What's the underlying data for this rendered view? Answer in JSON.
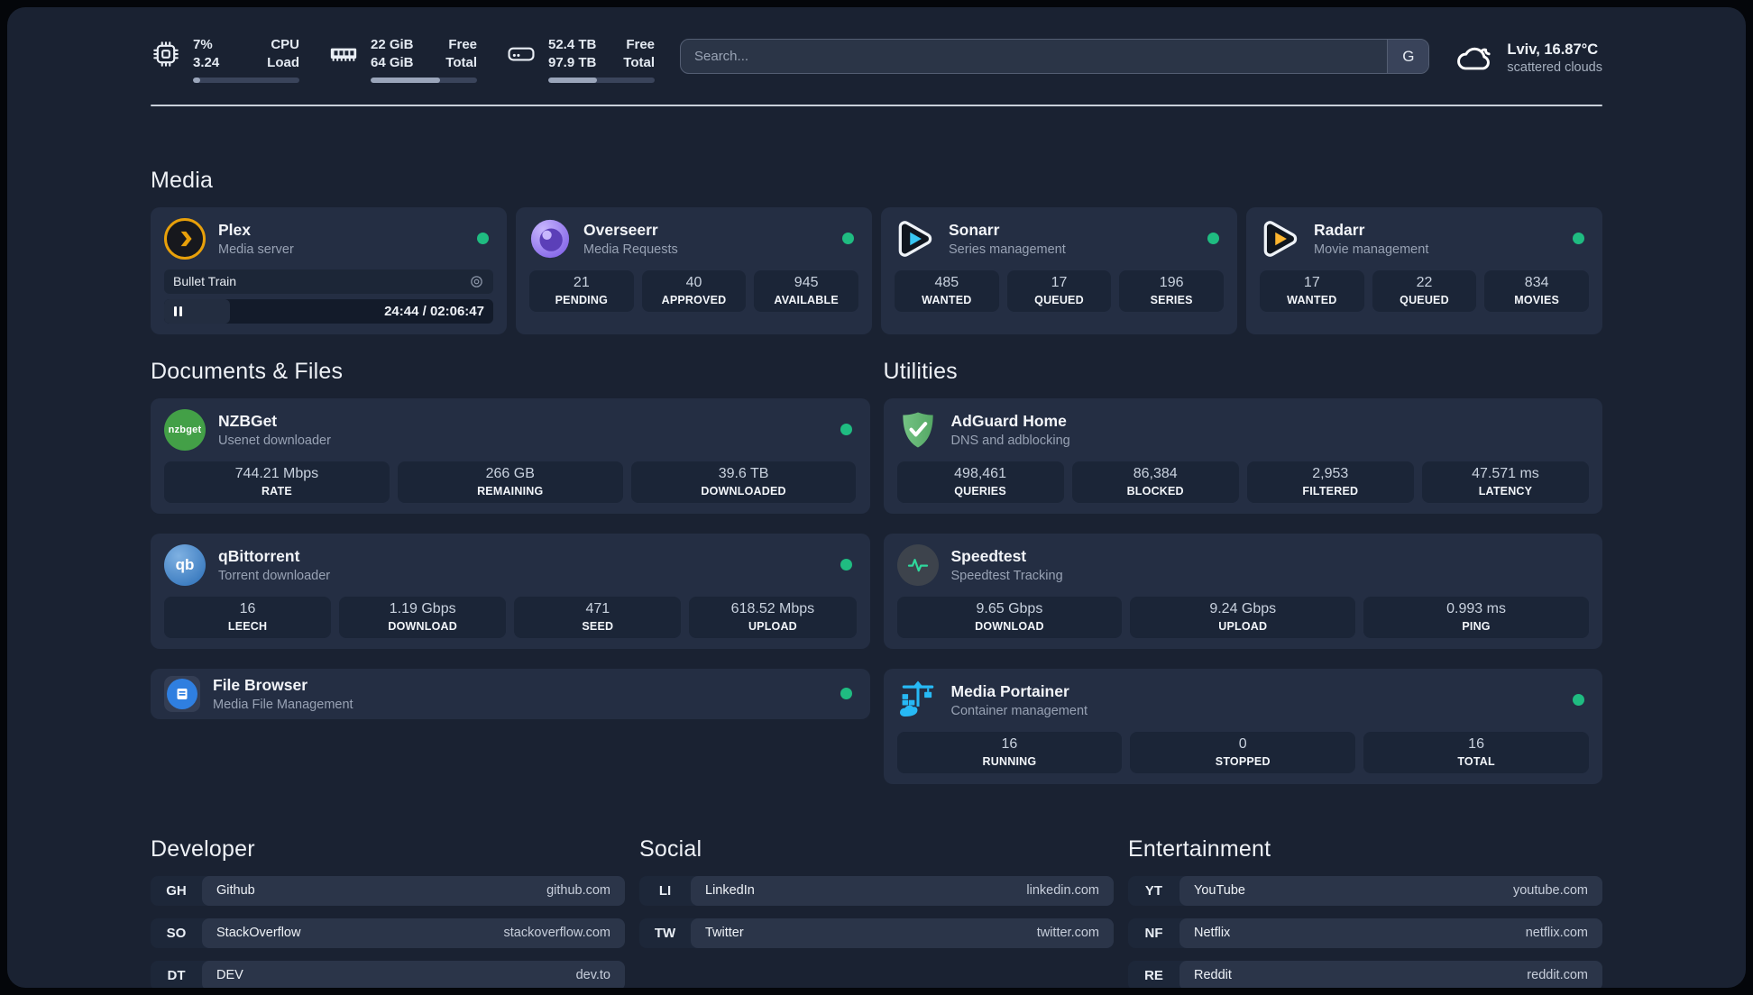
{
  "header": {
    "stats": [
      {
        "left_top": "7%",
        "left_bottom": "3.24",
        "right_top": "CPU",
        "right_bottom": "Load",
        "progress_pct": 7
      },
      {
        "left_top": "22 GiB",
        "left_bottom": "64 GiB",
        "right_top": "Free",
        "right_bottom": "Total",
        "progress_pct": 65
      },
      {
        "left_top": "52.4 TB",
        "left_bottom": "97.9 TB",
        "right_top": "Free",
        "right_bottom": "Total",
        "progress_pct": 46
      }
    ],
    "search": {
      "placeholder": "Search...",
      "engine_label": "G"
    },
    "weather": {
      "location": "Lviv, 16.87°C",
      "condition": "scattered clouds"
    }
  },
  "sections": {
    "media": {
      "title": "Media",
      "apps": [
        {
          "name": "Plex",
          "subtitle": "Media server",
          "online": true,
          "player": {
            "track": "Bullet Train",
            "time": "24:44 / 02:06:47",
            "progress_pct": 20
          }
        },
        {
          "name": "Overseerr",
          "subtitle": "Media Requests",
          "online": true,
          "stats": [
            {
              "value": "21",
              "label": "PENDING"
            },
            {
              "value": "40",
              "label": "APPROVED"
            },
            {
              "value": "945",
              "label": "AVAILABLE"
            }
          ]
        },
        {
          "name": "Sonarr",
          "subtitle": "Series management",
          "online": true,
          "stats": [
            {
              "value": "485",
              "label": "WANTED"
            },
            {
              "value": "17",
              "label": "QUEUED"
            },
            {
              "value": "196",
              "label": "SERIES"
            }
          ]
        },
        {
          "name": "Radarr",
          "subtitle": "Movie management",
          "online": true,
          "stats": [
            {
              "value": "17",
              "label": "WANTED"
            },
            {
              "value": "22",
              "label": "QUEUED"
            },
            {
              "value": "834",
              "label": "MOVIES"
            }
          ]
        }
      ]
    },
    "documents": {
      "title": "Documents & Files",
      "apps": [
        {
          "name": "NZBGet",
          "subtitle": "Usenet downloader",
          "online": true,
          "stats": [
            {
              "value": "744.21 Mbps",
              "label": "RATE"
            },
            {
              "value": "266 GB",
              "label": "REMAINING"
            },
            {
              "value": "39.6 TB",
              "label": "DOWNLOADED"
            }
          ]
        },
        {
          "name": "qBittorrent",
          "subtitle": "Torrent downloader",
          "online": true,
          "stats": [
            {
              "value": "16",
              "label": "LEECH"
            },
            {
              "value": "1.19 Gbps",
              "label": "DOWNLOAD"
            },
            {
              "value": "471",
              "label": "SEED"
            },
            {
              "value": "618.52 Mbps",
              "label": "UPLOAD"
            }
          ]
        },
        {
          "name": "File Browser",
          "subtitle": "Media File Management",
          "online": true
        }
      ]
    },
    "utilities": {
      "title": "Utilities",
      "apps": [
        {
          "name": "AdGuard Home",
          "subtitle": "DNS and adblocking",
          "stats": [
            {
              "value": "498,461",
              "label": "QUERIES"
            },
            {
              "value": "86,384",
              "label": "BLOCKED"
            },
            {
              "value": "2,953",
              "label": "FILTERED"
            },
            {
              "value": "47.571 ms",
              "label": "LATENCY"
            }
          ]
        },
        {
          "name": "Speedtest",
          "subtitle": "Speedtest Tracking",
          "stats": [
            {
              "value": "9.65 Gbps",
              "label": "DOWNLOAD"
            },
            {
              "value": "9.24 Gbps",
              "label": "UPLOAD"
            },
            {
              "value": "0.993 ms",
              "label": "PING"
            }
          ]
        },
        {
          "name": "Media Portainer",
          "subtitle": "Container management",
          "online": true,
          "stats": [
            {
              "value": "16",
              "label": "RUNNING"
            },
            {
              "value": "0",
              "label": "STOPPED"
            },
            {
              "value": "16",
              "label": "TOTAL"
            }
          ]
        }
      ]
    },
    "bookmarks": [
      {
        "title": "Developer",
        "links": [
          {
            "abbr": "GH",
            "name": "Github",
            "url": "github.com"
          },
          {
            "abbr": "SO",
            "name": "StackOverflow",
            "url": "stackoverflow.com"
          },
          {
            "abbr": "DT",
            "name": "DEV",
            "url": "dev.to"
          }
        ]
      },
      {
        "title": "Social",
        "links": [
          {
            "abbr": "LI",
            "name": "LinkedIn",
            "url": "linkedin.com"
          },
          {
            "abbr": "TW",
            "name": "Twitter",
            "url": "twitter.com"
          }
        ]
      },
      {
        "title": "Entertainment",
        "links": [
          {
            "abbr": "YT",
            "name": "YouTube",
            "url": "youtube.com"
          },
          {
            "abbr": "NF",
            "name": "Netflix",
            "url": "netflix.com"
          },
          {
            "abbr": "RE",
            "name": "Reddit",
            "url": "reddit.com"
          }
        ]
      }
    ]
  },
  "icons": {
    "nzbget_logo_text": "nzbget",
    "qbittorrent_logo_text": "qb"
  },
  "colors": {
    "status_online": "#1fbc81",
    "plex_amber": "#e8a00a",
    "sonarr_cyan": "#38c6f2",
    "radarr_amber": "#fdb52e",
    "portainer_blue": "#27b9f5"
  }
}
